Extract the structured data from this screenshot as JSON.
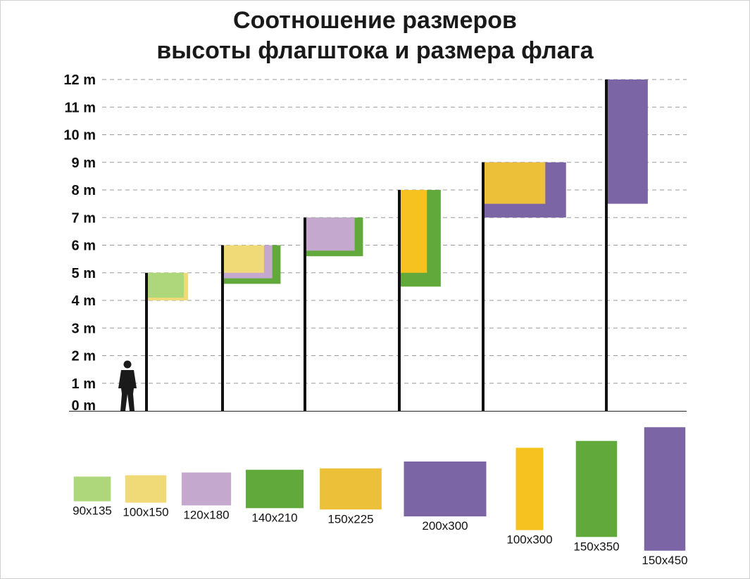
{
  "title": {
    "line1": "Соотношение размеров",
    "line2": "высоты флагштока и размера флага"
  },
  "chart_data": {
    "type": "bar",
    "y_axis": {
      "unit": "m",
      "range": [
        0,
        12
      ],
      "tick_labels": [
        "0 m",
        "1 m",
        "2 m",
        "3 m",
        "4 m",
        "5 m",
        "6 m",
        "7 m",
        "8 m",
        "9 m",
        "10 m",
        "11 m",
        "12 m"
      ],
      "grid": "dashed"
    },
    "person_height_m": 1.85,
    "poles": [
      {
        "height_m": 5,
        "flags": [
          {
            "size": "100x150",
            "width_m": 1.5,
            "height_m": 1.0,
            "color": "#F0DA78"
          },
          {
            "size": "90x135",
            "width_m": 1.35,
            "height_m": 0.9,
            "color": "#AED77B"
          }
        ]
      },
      {
        "height_m": 6,
        "flags": [
          {
            "size": "140x210",
            "width_m": 2.1,
            "height_m": 1.4,
            "color": "#61A93A"
          },
          {
            "size": "120x180",
            "width_m": 1.8,
            "height_m": 1.2,
            "color": "#C4A8CD"
          },
          {
            "size": "100x150",
            "width_m": 1.5,
            "height_m": 1.0,
            "color": "#F0DA78"
          }
        ]
      },
      {
        "height_m": 7,
        "flags": [
          {
            "size": "140x210",
            "width_m": 2.1,
            "height_m": 1.4,
            "color": "#61A93A"
          },
          {
            "size": "120x180",
            "width_m": 1.8,
            "height_m": 1.2,
            "color": "#C4A8CD"
          }
        ]
      },
      {
        "height_m": 8,
        "flags": [
          {
            "size": "150x350",
            "width_m": 1.5,
            "height_m": 3.5,
            "color": "#61A93A"
          },
          {
            "size": "100x300",
            "width_m": 1.0,
            "height_m": 3.0,
            "color": "#F5C21F"
          }
        ]
      },
      {
        "height_m": 9,
        "flags": [
          {
            "size": "200x300",
            "width_m": 3.0,
            "height_m": 2.0,
            "color": "#7B65A4"
          },
          {
            "size": "150x225",
            "width_m": 2.25,
            "height_m": 1.5,
            "color": "#EDC03A"
          }
        ]
      },
      {
        "height_m": 12,
        "flags": [
          {
            "size": "150x450",
            "width_m": 1.5,
            "height_m": 4.5,
            "color": "#7B65A4"
          }
        ]
      }
    ],
    "legend": [
      {
        "label": "90x135",
        "width_cm": 135,
        "height_cm": 90,
        "color": "#AED77B"
      },
      {
        "label": "100x150",
        "width_cm": 150,
        "height_cm": 100,
        "color": "#F0DA78"
      },
      {
        "label": "120x180",
        "width_cm": 180,
        "height_cm": 120,
        "color": "#C4A8CD"
      },
      {
        "label": "140x210",
        "width_cm": 210,
        "height_cm": 140,
        "color": "#61A93A"
      },
      {
        "label": "150x225",
        "width_cm": 225,
        "height_cm": 150,
        "color": "#EDC03A"
      },
      {
        "label": "200x300",
        "width_cm": 300,
        "height_cm": 200,
        "color": "#7B65A4"
      },
      {
        "label": "100x300",
        "width_cm": 100,
        "height_cm": 300,
        "color": "#F5C21F"
      },
      {
        "label": "150x350",
        "width_cm": 150,
        "height_cm": 350,
        "color": "#61A93A"
      },
      {
        "label": "150x450",
        "width_cm": 150,
        "height_cm": 450,
        "color": "#7B65A4"
      }
    ]
  }
}
